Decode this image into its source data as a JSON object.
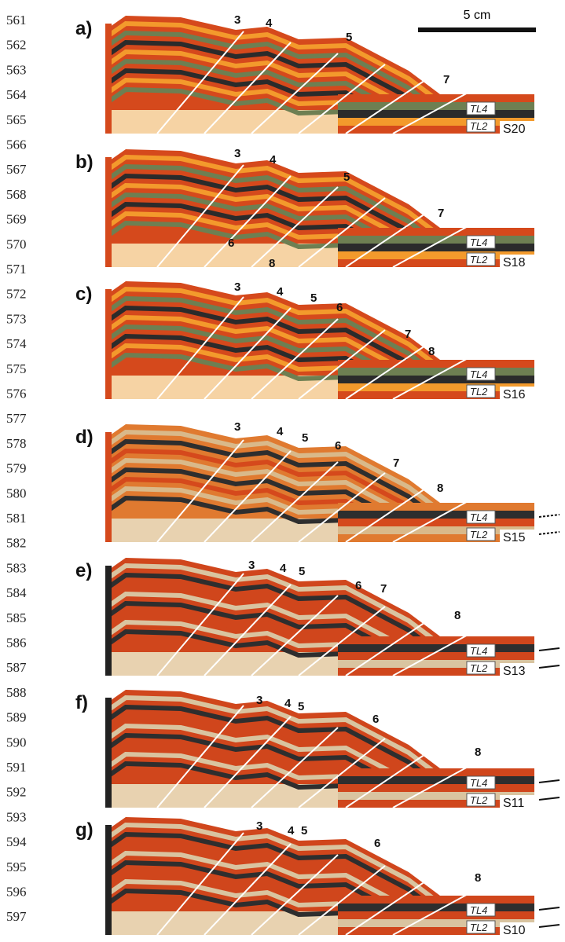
{
  "line_numbers": [
    "561",
    "562",
    "563",
    "564",
    "565",
    "566",
    "567",
    "568",
    "569",
    "570",
    "571",
    "572",
    "573",
    "574",
    "575",
    "576",
    "577",
    "578",
    "579",
    "580",
    "581",
    "582",
    "583",
    "584",
    "585",
    "586",
    "587",
    "588",
    "589",
    "590",
    "591",
    "592",
    "593",
    "594",
    "595",
    "596",
    "597"
  ],
  "scale_bar": {
    "label": "5 cm"
  },
  "panels": [
    {
      "label": "a)",
      "section": "S20",
      "layers": [
        "TL4",
        "TL2"
      ],
      "faults": [
        "3",
        "4",
        "5",
        "7"
      ]
    },
    {
      "label": "b)",
      "section": "S18",
      "layers": [
        "TL4",
        "TL2"
      ],
      "faults": [
        "3",
        "4",
        "5",
        "7",
        "6",
        "8"
      ]
    },
    {
      "label": "c)",
      "section": "S16",
      "layers": [
        "TL4",
        "TL2"
      ],
      "faults": [
        "3",
        "4",
        "5",
        "6",
        "7",
        "8"
      ]
    },
    {
      "label": "d)",
      "section": "S15",
      "layers": [
        "TL4",
        "TL2"
      ],
      "faults": [
        "3",
        "4",
        "5",
        "6",
        "7",
        "8"
      ]
    },
    {
      "label": "e)",
      "section": "S13",
      "layers": [
        "TL4",
        "TL2"
      ],
      "faults": [
        "3",
        "4",
        "5",
        "6",
        "7",
        "8"
      ]
    },
    {
      "label": "f)",
      "section": "S11",
      "layers": [
        "TL4",
        "TL2"
      ],
      "faults": [
        "3",
        "4",
        "5",
        "6",
        "8"
      ]
    },
    {
      "label": "g)",
      "section": "S10",
      "layers": [
        "TL4",
        "TL2"
      ],
      "faults": [
        "3",
        "4",
        "5",
        "6",
        "8"
      ]
    }
  ]
}
